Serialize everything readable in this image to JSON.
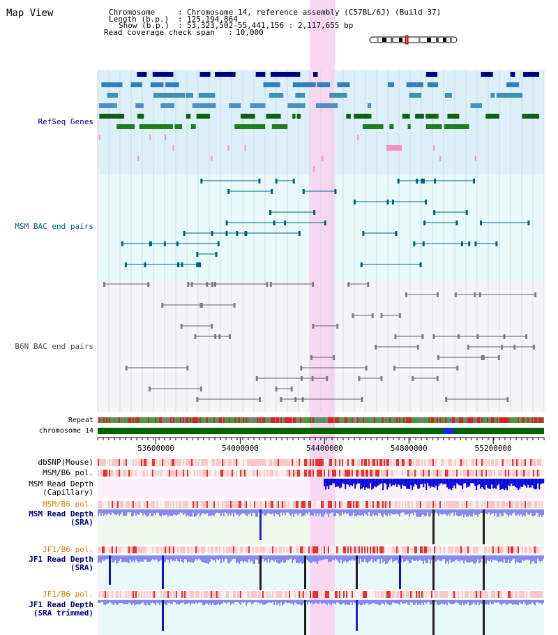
{
  "title": "Map View",
  "info": {
    "chromosome_label": "Chromosome",
    "chromosome_value": "Chromosome 14, reference assembly (C57BL/6J) (Build 37)",
    "length_label": "Length (b.p.)",
    "length_value": "125,194,864",
    "show_label": "Show (b.p.)",
    "show_value": "53,323,502-55,441,156 : 2,117,655 bp",
    "coverage_label": "Read coverage check span",
    "coverage_value": "10,000"
  },
  "tracks": {
    "refseq": "RefSeq Genes",
    "msm_bac": "MSM BAC end pairs",
    "b6n_bac": "B6N BAC end pairs",
    "repeat": "Repeat",
    "chromosome": "chromosome 14",
    "dbsnp": "dbSNP(Mouse)",
    "msm_b6_pol_1": "MSM/B6 pol.",
    "msm_depth_cap_1": "MSM Read Depth",
    "msm_depth_cap_2": "(Capillary)",
    "msm_b6_pol_2": "MSM/B6 pol.",
    "msm_depth_sra_1": "MSM Read Depth",
    "msm_depth_sra_2": "(SRA)",
    "jf1_b6_pol_1": "JF1/B6 pol.",
    "jf1_depth_sra_1": "JF1 Read Depth",
    "jf1_depth_sra_2": "(SRA)",
    "jf1_b6_pol_2": "JF1/B6 pol.",
    "jf1_depth_trim_1": "JF1 Read Depth",
    "jf1_depth_trim_2": "(SRA trimmed)"
  },
  "axis": {
    "range_bp": [
      53323502,
      55441156
    ],
    "ticks": [
      {
        "value": 53600000,
        "label": "53600000"
      },
      {
        "value": 54000000,
        "label": "54000000"
      },
      {
        "value": 54400000,
        "label": "54400000"
      },
      {
        "value": 54800000,
        "label": "54800000"
      },
      {
        "value": 55200000,
        "label": "55200000"
      }
    ]
  },
  "highlight_bp": [
    54330000,
    54450000
  ],
  "colors": {
    "refseq_bg": "#dcf0fa",
    "msm_bac_bg": "#e8fafa",
    "b6n_bac_bg": "#f5f5f8",
    "highlight": "#f8d8f0",
    "chromosome_bar": "#006400",
    "msm_label": "#006080",
    "navy": "#000080",
    "orange": "#e08000",
    "depth_blue": "#4040e0",
    "depth_light": "#8888f0",
    "pol_red": "#f00000",
    "pol_pink": "#ffc8c8"
  }
}
